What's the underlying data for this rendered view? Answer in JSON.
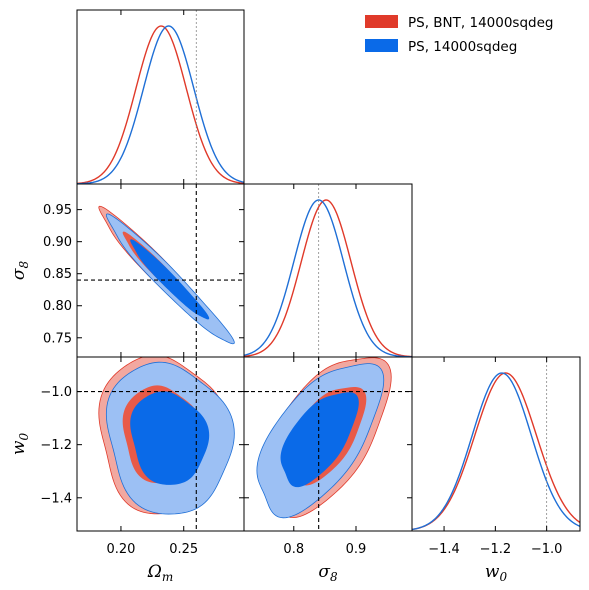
{
  "chart_data": {
    "type": "triangle-corner",
    "parameters": [
      {
        "key": "om",
        "label": "Ω",
        "label_sub": "m",
        "range": [
          0.165,
          0.298
        ],
        "ticks": [
          0.2,
          0.25
        ],
        "tick_labels": [
          "0.20",
          "0.25"
        ],
        "fiducial": 0.26
      },
      {
        "key": "s8",
        "label": "σ",
        "label_sub": "8",
        "range": [
          0.72,
          0.99
        ],
        "ticks": [
          0.75,
          0.8,
          0.85,
          0.9,
          0.95
        ],
        "tick_labels": [
          "0.75",
          "0.80",
          "0.85",
          "0.90",
          "0.95"
        ],
        "x_ticks": [
          0.8,
          0.9
        ],
        "x_tick_labels": [
          "0.8",
          "0.9"
        ],
        "fiducial": 0.84
      },
      {
        "key": "w0",
        "label": "w",
        "label_sub": "0",
        "range": [
          -1.525,
          -0.87
        ],
        "ticks": [
          -1.4,
          -1.2,
          -1.0
        ],
        "tick_labels": [
          "−1.4",
          "−1.2",
          "−1.0"
        ],
        "fiducial": -1.0
      }
    ],
    "series": [
      {
        "name": "PS, BNT, 14000sqdeg",
        "color": "#e03a2a",
        "fill_outer": "#f2a8a0",
        "fill_inner": "#e85a48",
        "mean": {
          "om": 0.232,
          "s8": 0.852,
          "w0": -1.16
        },
        "sigma": {
          "om": 0.02,
          "s8": 0.04,
          "w0": 0.12
        },
        "corr": {
          "om_s8": -0.97,
          "om_w0": -0.05,
          "s8_w0": 0.55
        }
      },
      {
        "name": "PS, 14000sqdeg",
        "color": "#1f6fd6",
        "fill_outer": "#9cc0f4",
        "fill_inner": "#0a6ae8",
        "mean": {
          "om": 0.238,
          "s8": 0.84,
          "w0": -1.175
        },
        "sigma": {
          "om": 0.02,
          "s8": 0.04,
          "w0": 0.115
        },
        "corr": {
          "om_s8": -0.97,
          "om_w0": -0.1,
          "s8_w0": 0.6
        }
      }
    ],
    "grid": false,
    "legend_position": "top-right"
  }
}
